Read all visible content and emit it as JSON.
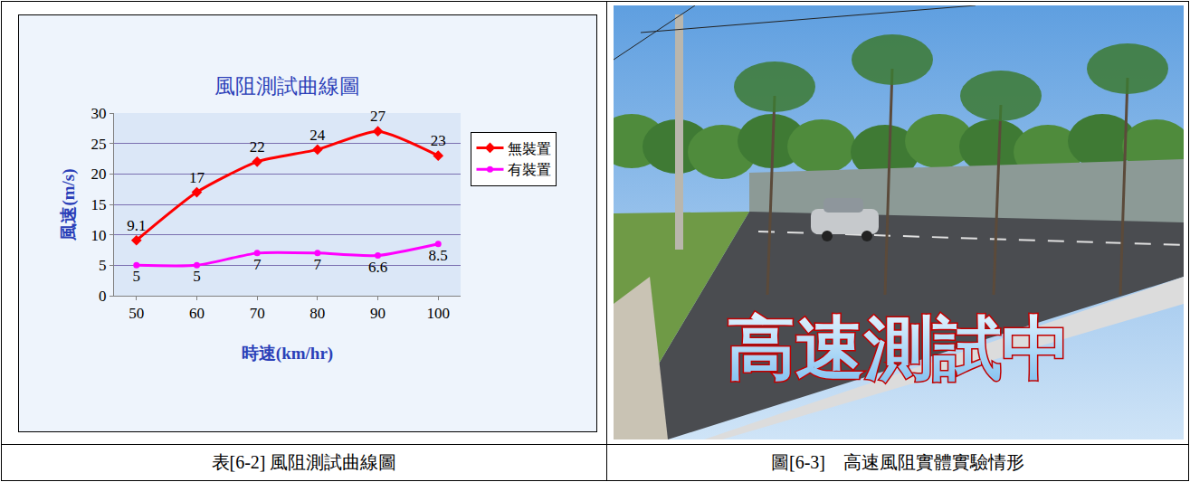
{
  "chart_data": {
    "type": "line",
    "title": "風阻測試曲線圖",
    "x_label": "時速(km/hr)",
    "y_label": "風速(m/s)",
    "categories": [
      "50",
      "60",
      "70",
      "80",
      "90",
      "100"
    ],
    "series": [
      {
        "name": "無裝置",
        "color": "#ff0000",
        "marker": "diamond",
        "line_style": "solid",
        "values": [
          9.1,
          17,
          22,
          24,
          27,
          23
        ]
      },
      {
        "name": "有裝置",
        "color": "#ff00ff",
        "marker": "circle",
        "line_style": "solid",
        "values": [
          5,
          5,
          7,
          7,
          6.6,
          8.5
        ]
      }
    ],
    "ylim": [
      0,
      30
    ],
    "yticks": [
      0,
      5,
      10,
      15,
      20,
      25,
      30
    ],
    "grid": true,
    "legend": "right",
    "data_labels": true
  },
  "photo": {
    "overlay_text": "高速測試中"
  },
  "captions": [
    "表[6-2] 風阻測試曲線圖",
    "圖[6-3]　高速風阻實體實驗情形"
  ]
}
